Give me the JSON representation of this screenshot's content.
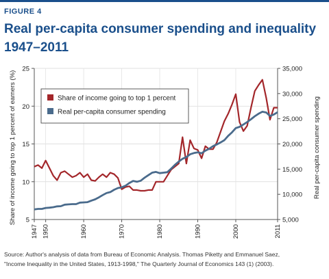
{
  "figure_label": "FIGURE 4",
  "title_line1": "Real per-capita consumer spending and inequality",
  "title_line2": "1947–2011",
  "source_line1": "Source: Author's analysis of data from Bureau of Economic Analysis. Thomas Piketty and Emmanuel Saez,",
  "source_line2": "\"Income Inequality in the United States, 1913-1998,\" The Quarterly Journal of Economics 143 (1) (2003).",
  "colors": {
    "accent": "#1a4f8b",
    "income_series": "#a3262a",
    "spending_series": "#4a6b8c"
  },
  "chart_data": {
    "type": "line",
    "ylabel_left": "Share of income going to top 1 percent of earners (%)",
    "ylabel_right": "Real per-capita consumer spending",
    "x_ticks": [
      "1947",
      "1950",
      "1960",
      "1970",
      "1980",
      "1990",
      "2000",
      "2011"
    ],
    "ylim_left": [
      5,
      25
    ],
    "y_ticks_left": [
      "5",
      "10",
      "15",
      "20",
      "25"
    ],
    "ylim_right": [
      5000,
      35000
    ],
    "y_ticks_right": [
      "5,000",
      "10,000",
      "15,000",
      "20,000",
      "25,000",
      "30,000",
      "35,000"
    ],
    "grid": true,
    "legend_position": "top-left",
    "series": [
      {
        "name": "Share of income going to top 1 percent",
        "axis": "left",
        "x": [
          1947,
          1948,
          1949,
          1950,
          1951,
          1952,
          1953,
          1954,
          1955,
          1956,
          1957,
          1958,
          1959,
          1960,
          1961,
          1962,
          1963,
          1964,
          1965,
          1966,
          1967,
          1968,
          1969,
          1970,
          1971,
          1972,
          1973,
          1974,
          1975,
          1976,
          1977,
          1978,
          1979,
          1980,
          1981,
          1982,
          1983,
          1984,
          1985,
          1986,
          1987,
          1988,
          1989,
          1990,
          1991,
          1992,
          1993,
          1994,
          1995,
          1996,
          1997,
          1998,
          1999,
          2000,
          2001,
          2002,
          2003,
          2004,
          2005,
          2006,
          2007,
          2008,
          2009,
          2010,
          2011
        ],
        "values": [
          12.0,
          12.2,
          11.8,
          12.8,
          11.8,
          10.8,
          10.2,
          11.2,
          11.4,
          11.0,
          10.6,
          10.8,
          11.2,
          10.6,
          11.0,
          10.2,
          10.1,
          10.6,
          11.0,
          10.6,
          11.2,
          11.0,
          10.5,
          9.0,
          9.3,
          9.4,
          8.9,
          8.9,
          8.8,
          8.8,
          8.9,
          8.9,
          10.0,
          10.0,
          10.0,
          10.8,
          11.6,
          12.0,
          12.4,
          15.9,
          12.4,
          15.5,
          14.4,
          14.2,
          13.1,
          14.7,
          14.3,
          14.3,
          15.2,
          16.6,
          18.0,
          19.0,
          20.2,
          21.6,
          17.9,
          16.7,
          17.4,
          19.8,
          22.0,
          22.8,
          23.5,
          21.1,
          18.2,
          19.8,
          19.8
        ]
      },
      {
        "name": "Real per-capita consumer spending",
        "axis": "right",
        "x": [
          1947,
          1948,
          1949,
          1950,
          1951,
          1952,
          1953,
          1954,
          1955,
          1956,
          1957,
          1958,
          1959,
          1960,
          1961,
          1962,
          1963,
          1964,
          1965,
          1966,
          1967,
          1968,
          1969,
          1970,
          1971,
          1972,
          1973,
          1974,
          1975,
          1976,
          1977,
          1978,
          1979,
          1980,
          1981,
          1982,
          1983,
          1984,
          1985,
          1986,
          1987,
          1988,
          1989,
          1990,
          1991,
          1992,
          1993,
          1994,
          1995,
          1996,
          1997,
          1998,
          1999,
          2000,
          2001,
          2002,
          2003,
          2004,
          2005,
          2006,
          2007,
          2008,
          2009,
          2010,
          2011
        ],
        "values": [
          7000,
          7100,
          7100,
          7300,
          7350,
          7450,
          7600,
          7650,
          7950,
          8000,
          8050,
          8050,
          8350,
          8400,
          8450,
          8750,
          9000,
          9400,
          9850,
          10250,
          10450,
          10900,
          11250,
          11400,
          11700,
          12250,
          12650,
          12500,
          12700,
          13300,
          13800,
          14300,
          14450,
          14200,
          14300,
          14400,
          15100,
          15850,
          16500,
          17050,
          17400,
          17950,
          18200,
          18350,
          18150,
          18650,
          19050,
          19550,
          19900,
          20300,
          20750,
          21600,
          22300,
          23150,
          23400,
          23850,
          24350,
          24900,
          25500,
          26000,
          26400,
          26250,
          25550,
          25850,
          26300
        ]
      }
    ]
  }
}
